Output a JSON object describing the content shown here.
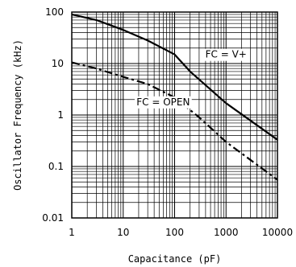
{
  "chart_data": {
    "type": "line",
    "title": "",
    "xlabel": "Capacitance (pF)",
    "ylabel": "Oscillator Frequency (kHz)",
    "x_scale": "log",
    "y_scale": "log",
    "xlim": [
      1,
      10000
    ],
    "ylim": [
      0.01,
      100
    ],
    "grid": true,
    "x_ticks": [
      "1",
      "10",
      "100",
      "1000",
      "10000"
    ],
    "y_ticks": [
      "100",
      "10",
      "1",
      "0.1",
      "0.01"
    ],
    "series": [
      {
        "name": "FC = V+",
        "style": "solid",
        "x": [
          1,
          3,
          10,
          30,
          100,
          200,
          1000,
          10000
        ],
        "y": [
          90,
          70,
          45,
          28,
          15,
          7,
          1.7,
          0.33
        ]
      },
      {
        "name": "FC = OPEN",
        "style": "dashdot",
        "x": [
          1,
          3,
          10,
          30,
          100,
          300,
          1000,
          10000
        ],
        "y": [
          10.5,
          8,
          5.5,
          4,
          2.2,
          0.9,
          0.3,
          0.055
        ]
      }
    ],
    "annotations": [
      {
        "text": "FC = V+",
        "x": 1000,
        "y": 13
      },
      {
        "text": "FC = OPEN",
        "x": 60,
        "y": 1.55
      }
    ]
  }
}
